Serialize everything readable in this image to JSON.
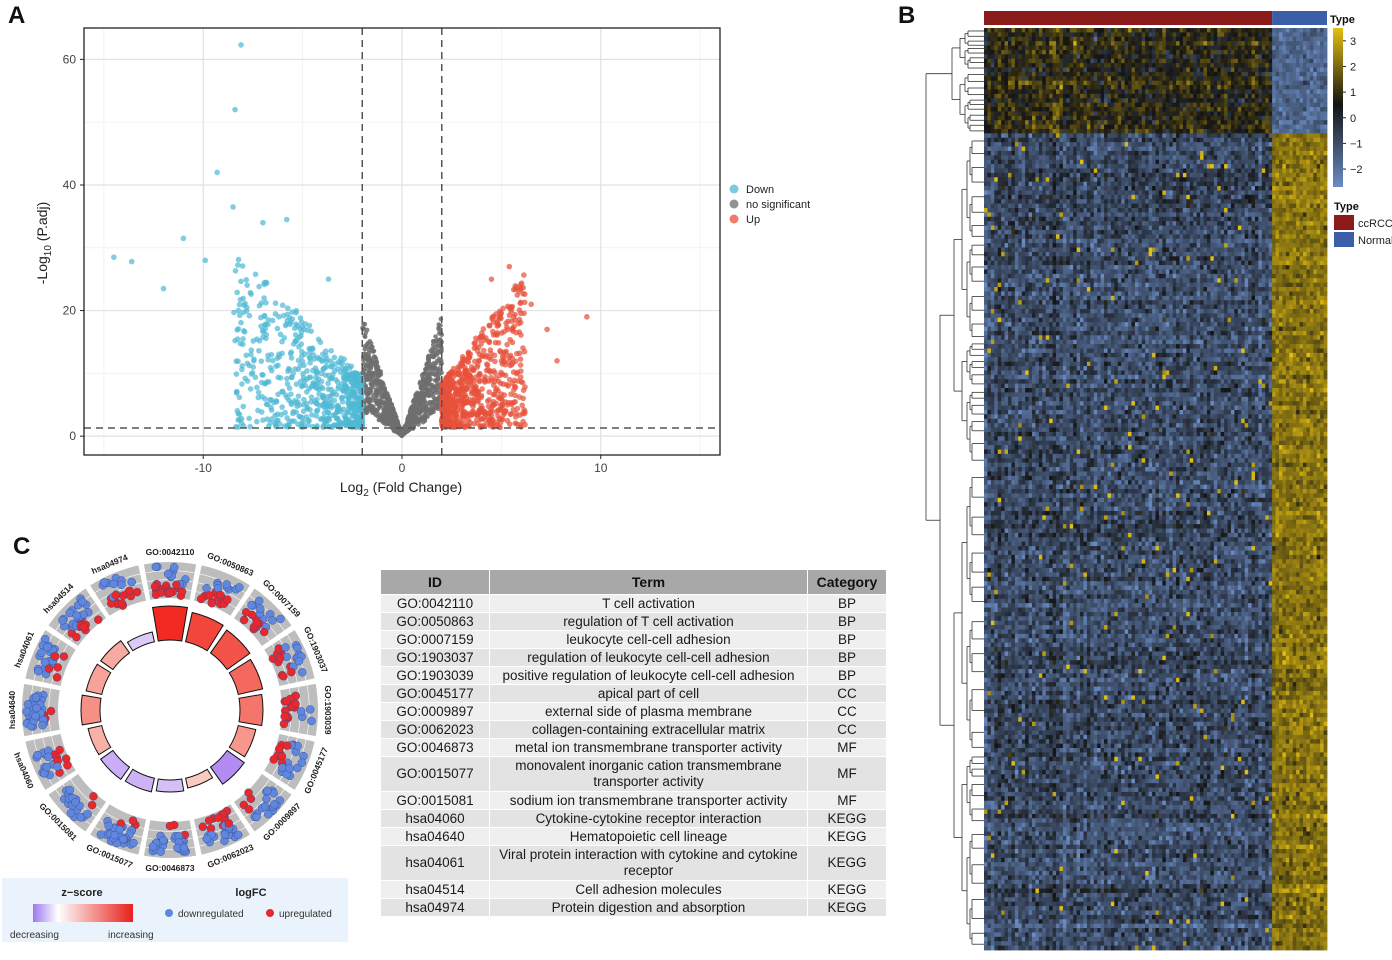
{
  "panels": {
    "A": "A",
    "B": "B",
    "C": "C"
  },
  "chart_data": [
    {
      "id": "A",
      "type": "scatter",
      "xlabel_main": "Log",
      "xlabel_sub": "2",
      "xlabel_rest": " (Fold Change)",
      "ylabel_main": "-Log",
      "ylabel_sub": "10",
      "ylabel_rest": " (P.adj)",
      "xlim": [
        -16,
        16
      ],
      "ylim": [
        -3,
        65
      ],
      "xticks": [
        -10,
        0,
        10
      ],
      "yticks": [
        0,
        20,
        40,
        60
      ],
      "thresholds": {
        "logfc": 2,
        "padj_log": 1.3
      },
      "legend": [
        {
          "label": "Down",
          "color": "#4fb9d4"
        },
        {
          "label": "no significant",
          "color": "#6e6e6e"
        },
        {
          "label": "Up",
          "color": "#e8503a"
        }
      ],
      "highlight_points": [
        {
          "x": -8.1,
          "y": 62.3,
          "group": "Down"
        },
        {
          "x": -8.4,
          "y": 52.0,
          "group": "Down"
        },
        {
          "x": -9.3,
          "y": 42.0,
          "group": "Down"
        },
        {
          "x": -8.5,
          "y": 36.5,
          "group": "Down"
        },
        {
          "x": -7.0,
          "y": 34.0,
          "group": "Down"
        },
        {
          "x": -5.8,
          "y": 34.5,
          "group": "Down"
        },
        {
          "x": -14.5,
          "y": 28.5,
          "group": "Down"
        },
        {
          "x": -13.6,
          "y": 27.8,
          "group": "Down"
        },
        {
          "x": -11.0,
          "y": 31.5,
          "group": "Down"
        },
        {
          "x": -9.9,
          "y": 28.0,
          "group": "Down"
        },
        {
          "x": -12.0,
          "y": 23.5,
          "group": "Down"
        },
        {
          "x": -3.7,
          "y": 25.0,
          "group": "Down"
        },
        {
          "x": 9.3,
          "y": 19.0,
          "group": "Up"
        },
        {
          "x": 5.4,
          "y": 27.0,
          "group": "Up"
        },
        {
          "x": 7.3,
          "y": 17.0,
          "group": "Up"
        },
        {
          "x": 7.8,
          "y": 12.0,
          "group": "Up"
        },
        {
          "x": 6.5,
          "y": 21.0,
          "group": "Up"
        },
        {
          "x": 4.5,
          "y": 25.0,
          "group": "Up"
        }
      ]
    },
    {
      "id": "B",
      "type": "heatmap",
      "annotation_title": "Type",
      "groups": [
        {
          "label": "ccRCC",
          "color": "#8b1a1a"
        },
        {
          "label": "Normal",
          "color": "#3a5ea8"
        }
      ],
      "colorbar_ticks": [
        "3",
        "2",
        "1",
        "0",
        "−1",
        "−2"
      ],
      "colorbar_range": [
        -2.7,
        3.5
      ],
      "colors": {
        "low": "#6a8cc4",
        "mid": "#141414",
        "high": "#e4bf10"
      }
    },
    {
      "id": "C",
      "type": "circular-go-plot",
      "terms": [
        "GO:0042110",
        "GO:0050863",
        "GO:0007159",
        "GO:1903037",
        "GO:1903039",
        "GO:0045177",
        "GO:0009897",
        "GO:0062023",
        "GO:0046873",
        "GO:0015077",
        "GO:0015081",
        "hsa04060",
        "hsa04640",
        "hsa04061",
        "hsa04514",
        "hsa04974"
      ],
      "zscore": [
        2.8,
        2.4,
        2.2,
        1.9,
        1.7,
        1.2,
        -1.5,
        0.4,
        -0.6,
        -0.8,
        -0.9,
        0.8,
        1.3,
        1.0,
        0.9,
        -0.4
      ],
      "legend": {
        "zscore_title": "z−score",
        "zscore_low": "decreasing",
        "zscore_high": "increasing",
        "logfc_title": "logFC",
        "down_label": "downregulated",
        "up_label": "upregulated",
        "down_color": "#5f87dd",
        "up_color": "#e8282a"
      }
    }
  ],
  "table": {
    "headers": [
      "ID",
      "Term",
      "Category"
    ],
    "rows": [
      [
        "GO:0042110",
        "T cell activation",
        "BP"
      ],
      [
        "GO:0050863",
        "regulation of T cell activation",
        "BP"
      ],
      [
        "GO:0007159",
        "leukocyte cell-cell adhesion",
        "BP"
      ],
      [
        "GO:1903037",
        "regulation of leukocyte cell-cell adhesion",
        "BP"
      ],
      [
        "GO:1903039",
        "positive regulation of leukocyte cell-cell adhesion",
        "BP"
      ],
      [
        "GO:0045177",
        "apical part of cell",
        "CC"
      ],
      [
        "GO:0009897",
        "external side of plasma membrane",
        "CC"
      ],
      [
        "GO:0062023",
        "collagen-containing extracellular matrix",
        "CC"
      ],
      [
        "GO:0046873",
        "metal ion transmembrane transporter activity",
        "MF"
      ],
      [
        "GO:0015077",
        "monovalent inorganic cation transmembrane transporter activity",
        "MF"
      ],
      [
        "GO:0015081",
        "sodium ion transmembrane transporter activity",
        "MF"
      ],
      [
        "hsa04060",
        "Cytokine-cytokine receptor interaction",
        "KEGG"
      ],
      [
        "hsa04640",
        "Hematopoietic cell lineage",
        "KEGG"
      ],
      [
        "hsa04061",
        "Viral protein interaction with cytokine and cytokine receptor",
        "KEGG"
      ],
      [
        "hsa04514",
        "Cell adhesion molecules",
        "KEGG"
      ],
      [
        "hsa04974",
        "Protein digestion and absorption",
        "KEGG"
      ]
    ]
  }
}
